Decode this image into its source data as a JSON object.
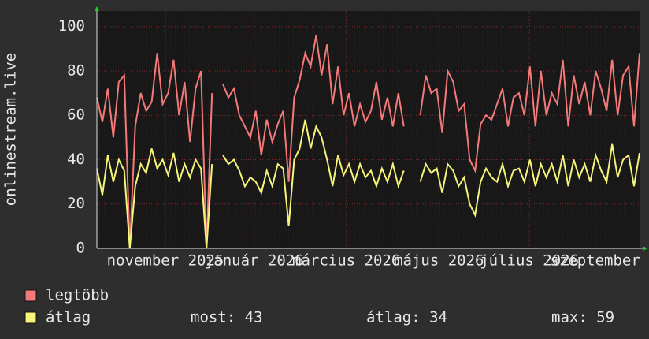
{
  "chart_data": {
    "type": "line",
    "y_label": "onlinestream.live",
    "xlim": [
      0,
      99
    ],
    "xticks": [
      {
        "value": 12.5,
        "label": "november 2025"
      },
      {
        "value": 28.7,
        "label": "január 2026"
      },
      {
        "value": 45.5,
        "label": "március 2026"
      },
      {
        "value": 62.4,
        "label": "május 2026"
      },
      {
        "value": 78.9,
        "label": "július 2026"
      },
      {
        "value": 90.9,
        "label": "szeptember"
      }
    ],
    "ylim": [
      0,
      107
    ],
    "yticks": [
      0,
      20,
      40,
      60,
      80,
      100
    ],
    "grid": true,
    "series": [
      {
        "name": "legtöbb",
        "color": "#f47a7a",
        "values": [
          68,
          57,
          72,
          50,
          75,
          78,
          0,
          55,
          70,
          62,
          66,
          88,
          65,
          70,
          85,
          60,
          75,
          48,
          72,
          80,
          0,
          70,
          null,
          74,
          68,
          72,
          60,
          55,
          50,
          62,
          42,
          58,
          48,
          56,
          62,
          30,
          68,
          76,
          88,
          82,
          96,
          78,
          92,
          65,
          82,
          60,
          70,
          55,
          65,
          57,
          62,
          75,
          58,
          68,
          55,
          70,
          55,
          null,
          null,
          60,
          78,
          70,
          72,
          52,
          80,
          75,
          62,
          65,
          40,
          35,
          56,
          60,
          58,
          65,
          72,
          55,
          68,
          70,
          60,
          82,
          55,
          80,
          60,
          70,
          65,
          85,
          55,
          78,
          65,
          75,
          60,
          80,
          72,
          62,
          85,
          60,
          78,
          82,
          55,
          88
        ]
      },
      {
        "name": "átlag",
        "color": "#f5f57a",
        "values": [
          36,
          24,
          42,
          30,
          40,
          35,
          0,
          28,
          38,
          34,
          45,
          36,
          40,
          33,
          43,
          30,
          38,
          32,
          40,
          36,
          0,
          38,
          null,
          42,
          38,
          40,
          35,
          28,
          32,
          30,
          25,
          35,
          28,
          38,
          36,
          10,
          40,
          45,
          58,
          45,
          55,
          50,
          40,
          28,
          42,
          33,
          38,
          30,
          38,
          32,
          35,
          28,
          36,
          30,
          38,
          28,
          35,
          null,
          null,
          30,
          38,
          34,
          36,
          25,
          38,
          35,
          28,
          32,
          20,
          15,
          30,
          36,
          32,
          30,
          38,
          28,
          35,
          36,
          30,
          40,
          28,
          38,
          32,
          38,
          30,
          42,
          28,
          40,
          32,
          38,
          30,
          42,
          35,
          30,
          47,
          32,
          40,
          42,
          28,
          43
        ]
      }
    ],
    "stats": [
      "most: 43",
      "átlag: 34",
      "max: 59"
    ]
  }
}
